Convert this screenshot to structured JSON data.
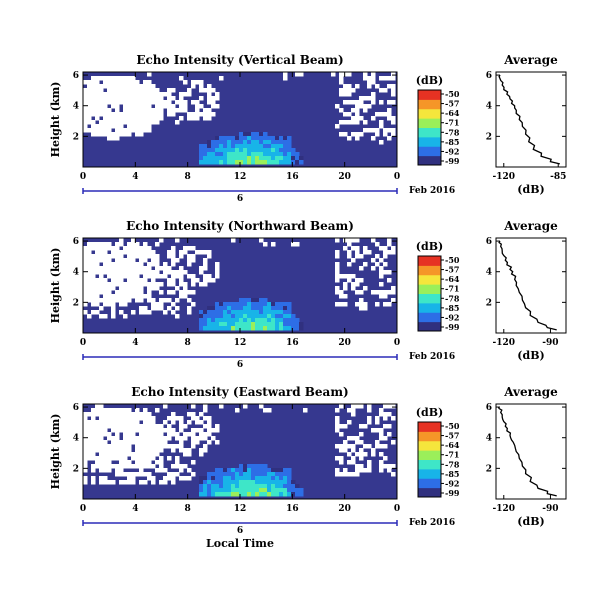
{
  "chart_data": [
    {
      "type": "heatmap",
      "title": "Echo Intensity (Vertical Beam)",
      "ylabel": "Height (km)",
      "xlabel": "",
      "x_ticks": [
        "0",
        "4",
        "8",
        "12",
        "16",
        "20",
        "0"
      ],
      "y_ticks": [
        "6",
        "4",
        "2"
      ],
      "date_label": "Feb 2016",
      "day_label": "6",
      "xlim": [
        0,
        24
      ],
      "ylim": [
        0,
        6.2
      ],
      "colorbar": {
        "label": "(dB)",
        "ticks": [
          "-50",
          "-57",
          "-64",
          "-71",
          "-78",
          "-85",
          "-92",
          "-99"
        ],
        "range": [
          -99,
          -50
        ]
      },
      "profile": {
        "title": "Average",
        "xlabel": "(dB)",
        "x_ticks": [
          "-120",
          "-85"
        ],
        "y_ticks": [
          "6",
          "4",
          "2"
        ],
        "xlim": [
          -125,
          -80
        ],
        "ylim": [
          0,
          6.2
        ],
        "x": [
          -84,
          -90,
          -96,
          -101,
          -104,
          -106,
          -108,
          -110,
          -112,
          -113,
          -115,
          -116,
          -118,
          -120,
          -121,
          -122,
          -123
        ],
        "y": [
          0.2,
          0.5,
          0.9,
          1.4,
          1.9,
          2.4,
          2.9,
          3.3,
          3.7,
          4.0,
          4.3,
          4.6,
          4.9,
          5.2,
          5.5,
          5.8,
          6.0
        ]
      }
    },
    {
      "type": "heatmap",
      "title": "Echo Intensity (Northward Beam)",
      "ylabel": "Height (km)",
      "xlabel": "",
      "x_ticks": [
        "0",
        "4",
        "8",
        "12",
        "16",
        "20",
        "0"
      ],
      "y_ticks": [
        "6",
        "4",
        "2"
      ],
      "date_label": "Feb 2016",
      "day_label": "6",
      "xlim": [
        0,
        24
      ],
      "ylim": [
        0,
        6.2
      ],
      "colorbar": {
        "label": "(dB)",
        "ticks": [
          "-50",
          "-57",
          "-64",
          "-71",
          "-78",
          "-85",
          "-92",
          "-99"
        ],
        "range": [
          -99,
          -50
        ]
      },
      "profile": {
        "title": "Average",
        "xlabel": "(dB)",
        "x_ticks": [
          "-120",
          "-90"
        ],
        "y_ticks": [
          "6",
          "4",
          "2"
        ],
        "xlim": [
          -125,
          -80
        ],
        "ylim": [
          0,
          6.2
        ],
        "x": [
          -86,
          -92,
          -98,
          -103,
          -106,
          -108,
          -110,
          -112,
          -113,
          -115,
          -116,
          -118,
          -119,
          -120,
          -121,
          -122,
          -123
        ],
        "y": [
          0.2,
          0.5,
          0.9,
          1.4,
          1.9,
          2.4,
          2.9,
          3.3,
          3.7,
          4.0,
          4.3,
          4.6,
          4.9,
          5.2,
          5.5,
          5.8,
          6.0
        ]
      }
    },
    {
      "type": "heatmap",
      "title": "Echo Intensity (Eastward Beam)",
      "ylabel": "Height (km)",
      "xlabel": "Local Time",
      "x_ticks": [
        "0",
        "4",
        "8",
        "12",
        "16",
        "20",
        "0"
      ],
      "y_ticks": [
        "6",
        "4",
        "2"
      ],
      "date_label": "Feb 2016",
      "day_label": "6",
      "xlim": [
        0,
        24
      ],
      "ylim": [
        0,
        6.2
      ],
      "colorbar": {
        "label": "(dB)",
        "ticks": [
          "-50",
          "-57",
          "-64",
          "-71",
          "-78",
          "-85",
          "-92",
          "-99"
        ],
        "range": [
          -99,
          -50
        ]
      },
      "profile": {
        "title": "Average",
        "xlabel": "(dB)",
        "x_ticks": [
          "-120",
          "-90"
        ],
        "y_ticks": [
          "6",
          "4",
          "2"
        ],
        "xlim": [
          -125,
          -80
        ],
        "ylim": [
          0,
          6.2
        ],
        "x": [
          -86,
          -92,
          -98,
          -103,
          -106,
          -108,
          -110,
          -112,
          -113,
          -115,
          -116,
          -118,
          -119,
          -120,
          -121,
          -122,
          -123
        ],
        "y": [
          0.2,
          0.5,
          0.9,
          1.4,
          1.9,
          2.4,
          2.9,
          3.3,
          3.7,
          4.0,
          4.3,
          4.6,
          4.9,
          5.2,
          5.5,
          5.8,
          6.0
        ]
      }
    }
  ],
  "colors": {
    "background_echo": "#36388f",
    "colormap": [
      "#30307f",
      "#2d6ee6",
      "#18b4e8",
      "#3ee6c8",
      "#9bef5a",
      "#f5e63c",
      "#f59628",
      "#e63223"
    ]
  }
}
